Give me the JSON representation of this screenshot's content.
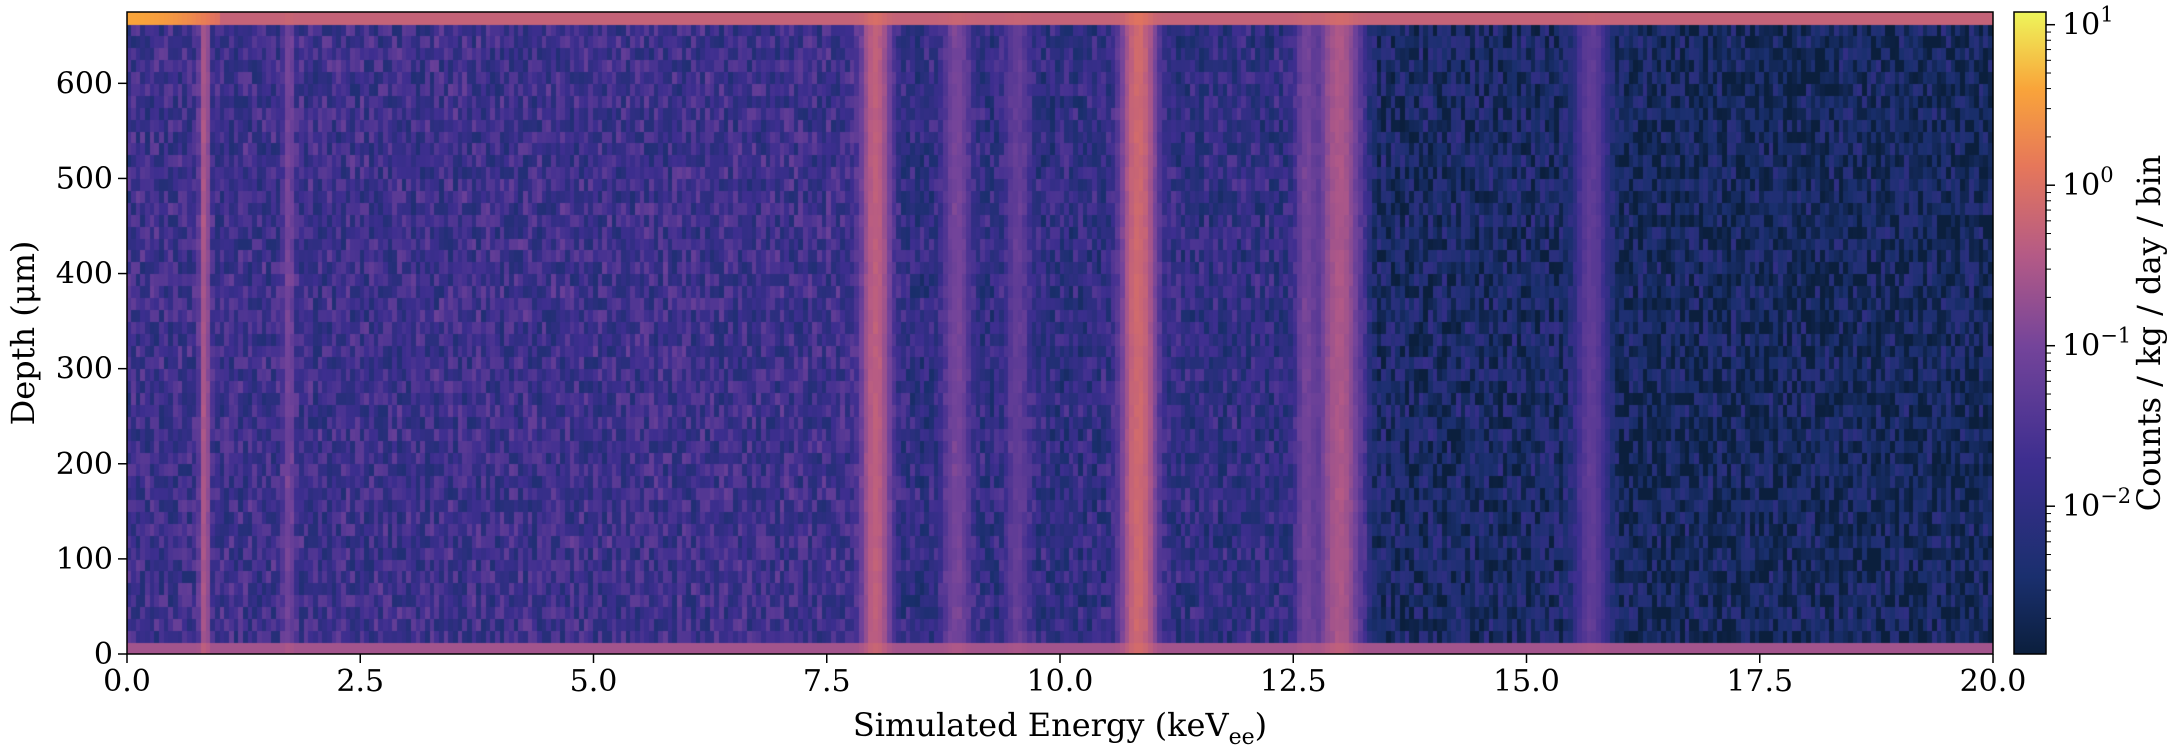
{
  "chart_data": {
    "type": "heatmap",
    "xlabel": {
      "main": "Simulated Energy (keV",
      "subscript": "ee",
      "close": ")"
    },
    "ylabel": "Depth (μm)",
    "xlim": [
      0,
      20
    ],
    "ylim": [
      0,
      675
    ],
    "x_ticks": [
      {
        "value": 0,
        "label": "0.0"
      },
      {
        "value": 2.5,
        "label": "2.5"
      },
      {
        "value": 5,
        "label": "5.0"
      },
      {
        "value": 7.5,
        "label": "7.5"
      },
      {
        "value": 10,
        "label": "10.0"
      },
      {
        "value": 12.5,
        "label": "12.5"
      },
      {
        "value": 15,
        "label": "15.0"
      },
      {
        "value": 17.5,
        "label": "17.5"
      },
      {
        "value": 20,
        "label": "20.0"
      }
    ],
    "y_ticks": [
      {
        "value": 0,
        "label": "0"
      },
      {
        "value": 100,
        "label": "100"
      },
      {
        "value": 200,
        "label": "200"
      },
      {
        "value": 300,
        "label": "300"
      },
      {
        "value": 400,
        "label": "400"
      },
      {
        "value": 500,
        "label": "500"
      },
      {
        "value": 600,
        "label": "600"
      }
    ],
    "colorbar": {
      "label": "Counts / kg / day / bin",
      "scale": "log",
      "range": [
        0.0012,
        12
      ],
      "colormap": "plasma-like (dark navy → purple → pink → orange → yellow)",
      "ticks": [
        {
          "value": 0.01,
          "base": "10",
          "exp": "−2"
        },
        {
          "value": 0.1,
          "base": "10",
          "exp": "−1"
        },
        {
          "value": 1,
          "base": "10",
          "exp": "0"
        },
        {
          "value": 10,
          "base": "10",
          "exp": "1"
        }
      ]
    },
    "features": {
      "surface_layers": [
        {
          "depth_range": [
            0,
            15
          ],
          "level": 0.25
        },
        {
          "depth_range": [
            660,
            675
          ],
          "level": 0.55
        }
      ],
      "top_hotspot": {
        "energy_range": [
          0,
          1.0
        ],
        "depth_range": [
          660,
          675
        ],
        "level": 4.0
      },
      "emission_lines": [
        {
          "energy": 0.84,
          "width": 0.08,
          "level": 0.3
        },
        {
          "energy": 1.74,
          "width": 0.1,
          "level": 0.08
        },
        {
          "energy": 8.03,
          "width": 0.22,
          "level": 0.45
        },
        {
          "energy": 8.9,
          "width": 0.22,
          "level": 0.09
        },
        {
          "energy": 9.55,
          "width": 0.2,
          "level": 0.05
        },
        {
          "energy": 10.85,
          "width": 0.25,
          "level": 0.7
        },
        {
          "energy": 12.65,
          "width": 0.18,
          "level": 0.08
        },
        {
          "energy": 13.0,
          "width": 0.3,
          "level": 0.3
        },
        {
          "energy": 15.7,
          "width": 0.25,
          "level": 0.05
        }
      ],
      "continuum_levels": [
        {
          "energy_range": [
            0,
            8.0
          ],
          "level": 0.02
        },
        {
          "energy_range": [
            8.0,
            13.3
          ],
          "level": 0.012
        },
        {
          "energy_range": [
            13.3,
            15.7
          ],
          "level": 0.004
        },
        {
          "energy_range": [
            15.7,
            20
          ],
          "level": 0.003
        }
      ],
      "energy_bin_width": 0.05,
      "depth_bin_width": 12.5
    }
  }
}
